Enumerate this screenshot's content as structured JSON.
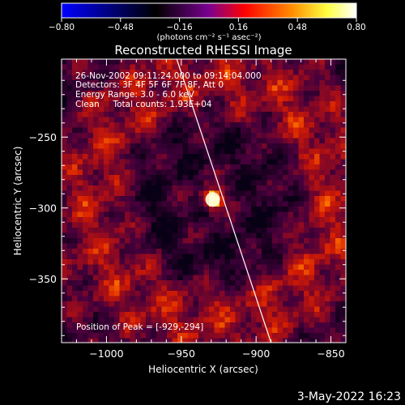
{
  "colorbar": {
    "ticks": [
      "-0.80",
      "-0.48",
      "-0.16",
      "0.16",
      "0.48",
      "0.80"
    ],
    "label": "(photons cm⁻² s⁻¹ asec⁻²)",
    "range": [
      -0.8,
      0.8
    ],
    "colormap": [
      "#0000ff",
      "#000000",
      "#7a0090",
      "#ff0000",
      "#ff8c00",
      "#ffff40",
      "#ffffff"
    ]
  },
  "chart_data": {
    "type": "heatmap",
    "title": "Reconstructed RHESSI Image",
    "xlabel": "Heliocentric X (arcsec)",
    "ylabel": "Heliocentric Y (arcsec)",
    "xlim": [
      -1030,
      -840
    ],
    "ylim": [
      -395,
      -195
    ],
    "x_ticks": [
      {
        "value": -1000,
        "label": "−1000"
      },
      {
        "value": -950,
        "label": "−950"
      },
      {
        "value": -900,
        "label": "−900"
      },
      {
        "value": -850,
        "label": "−850"
      }
    ],
    "y_ticks": [
      {
        "value": -250,
        "label": "−250"
      },
      {
        "value": -300,
        "label": "−300"
      },
      {
        "value": -350,
        "label": "−350"
      }
    ],
    "annotations": [
      "26-Nov-2002 09:11:24.000 to 09:14:04.000",
      "Detectors: 3F 4F 5F 6F 7F 8F, Att 0",
      "Energy Range: 3.0 - 6.0 keV",
      "Clean     Total counts: 1.93E+04"
    ],
    "peak_label": "Position of Peak = [-929,-294]",
    "peak": {
      "x": -929,
      "y": -294,
      "value": 0.8
    },
    "limb_line": [
      {
        "x": -953,
        "y": -195
      },
      {
        "x": -890,
        "y": -395
      }
    ],
    "grid": false
  },
  "footer": {
    "date": "3-May-2022 16:23"
  }
}
